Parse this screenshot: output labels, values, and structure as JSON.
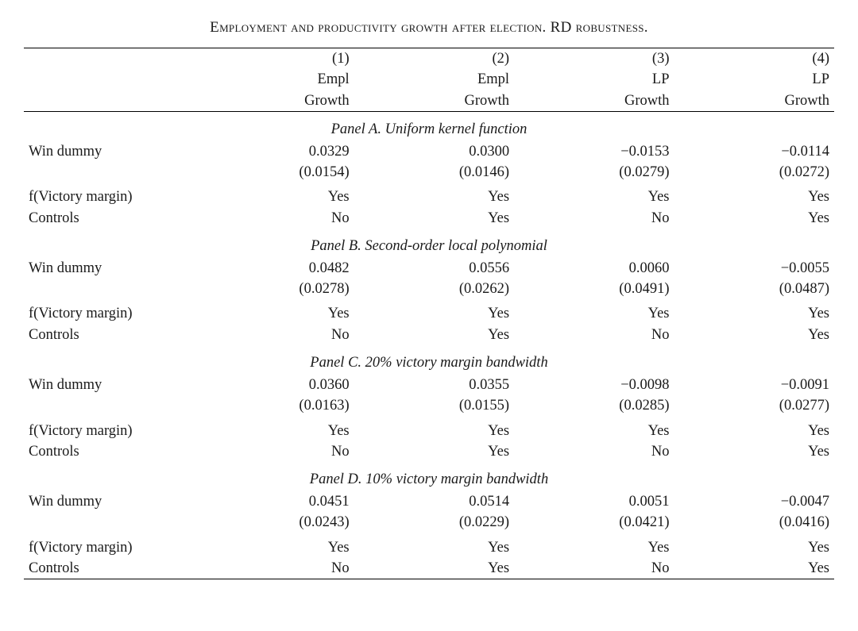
{
  "title": "Employment and productivity growth after election. RD robustness.",
  "columns": [
    {
      "num": "(1)",
      "l1": "Empl",
      "l2": "Growth"
    },
    {
      "num": "(2)",
      "l1": "Empl",
      "l2": "Growth"
    },
    {
      "num": "(3)",
      "l1": "LP",
      "l2": "Growth"
    },
    {
      "num": "(4)",
      "l1": "LP",
      "l2": "Growth"
    }
  ],
  "row_labels": {
    "win_dummy": "Win dummy",
    "fvm": "f(Victory margin)",
    "controls": "Controls"
  },
  "panels": [
    {
      "title": "Panel A. Uniform kernel function",
      "win_coef": [
        "0.0329",
        "0.0300",
        "−0.0153",
        "−0.0114"
      ],
      "win_se": [
        "(0.0154)",
        "(0.0146)",
        "(0.0279)",
        "(0.0272)"
      ],
      "fvm": [
        "Yes",
        "Yes",
        "Yes",
        "Yes"
      ],
      "controls": [
        "No",
        "Yes",
        "No",
        "Yes"
      ]
    },
    {
      "title": "Panel B. Second-order local polynomial",
      "win_coef": [
        "0.0482",
        "0.0556",
        "0.0060",
        "−0.0055"
      ],
      "win_se": [
        "(0.0278)",
        "(0.0262)",
        "(0.0491)",
        "(0.0487)"
      ],
      "fvm": [
        "Yes",
        "Yes",
        "Yes",
        "Yes"
      ],
      "controls": [
        "No",
        "Yes",
        "No",
        "Yes"
      ]
    },
    {
      "title": "Panel C. 20% victory margin bandwidth",
      "win_coef": [
        "0.0360",
        "0.0355",
        "−0.0098",
        "−0.0091"
      ],
      "win_se": [
        "(0.0163)",
        "(0.0155)",
        "(0.0285)",
        "(0.0277)"
      ],
      "fvm": [
        "Yes",
        "Yes",
        "Yes",
        "Yes"
      ],
      "controls": [
        "No",
        "Yes",
        "No",
        "Yes"
      ]
    },
    {
      "title": "Panel D. 10% victory margin bandwidth",
      "win_coef": [
        "0.0451",
        "0.0514",
        "0.0051",
        "−0.0047"
      ],
      "win_se": [
        "(0.0243)",
        "(0.0229)",
        "(0.0421)",
        "(0.0416)"
      ],
      "fvm": [
        "Yes",
        "Yes",
        "Yes",
        "Yes"
      ],
      "controls": [
        "No",
        "Yes",
        "No",
        "Yes"
      ]
    }
  ]
}
